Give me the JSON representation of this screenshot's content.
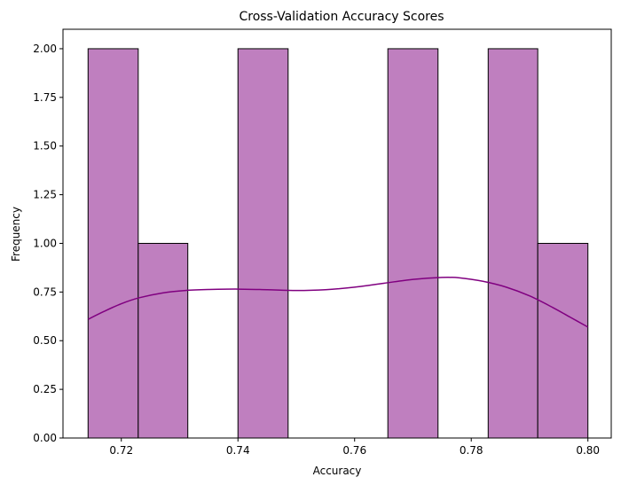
{
  "chart_data": {
    "type": "bar",
    "subtype": "histogram-with-kde",
    "title": "Cross-Validation Accuracy Scores",
    "xlabel": "Accuracy",
    "ylabel": "Frequency",
    "xlim": [
      0.71,
      0.804
    ],
    "ylim": [
      0,
      2.1
    ],
    "x_ticks": [
      0.72,
      0.74,
      0.76,
      0.78,
      0.8
    ],
    "x_tick_labels": [
      "0.72",
      "0.74",
      "0.76",
      "0.78",
      "0.80"
    ],
    "y_ticks": [
      0,
      0.25,
      0.5,
      0.75,
      1.0,
      1.25,
      1.5,
      1.75,
      2.0
    ],
    "y_tick_labels": [
      "0.00",
      "0.25",
      "0.50",
      "0.75",
      "1.00",
      "1.25",
      "1.50",
      "1.75",
      "2.00"
    ],
    "bins": [
      {
        "start": 0.7143,
        "end": 0.7229,
        "count": 2
      },
      {
        "start": 0.7229,
        "end": 0.7314,
        "count": 1
      },
      {
        "start": 0.7314,
        "end": 0.74,
        "count": 0
      },
      {
        "start": 0.74,
        "end": 0.7486,
        "count": 2
      },
      {
        "start": 0.7486,
        "end": 0.7571,
        "count": 0
      },
      {
        "start": 0.7571,
        "end": 0.7657,
        "count": 0
      },
      {
        "start": 0.7657,
        "end": 0.7743,
        "count": 2
      },
      {
        "start": 0.7743,
        "end": 0.7829,
        "count": 0
      },
      {
        "start": 0.7829,
        "end": 0.7914,
        "count": 2
      },
      {
        "start": 0.7914,
        "end": 0.8,
        "count": 1
      }
    ],
    "kde": {
      "x": [
        0.7143,
        0.717,
        0.72,
        0.723,
        0.727,
        0.731,
        0.735,
        0.74,
        0.745,
        0.75,
        0.755,
        0.76,
        0.765,
        0.77,
        0.775,
        0.778,
        0.782,
        0.786,
        0.79,
        0.794,
        0.797,
        0.8
      ],
      "y": [
        0.61,
        0.65,
        0.69,
        0.72,
        0.745,
        0.758,
        0.763,
        0.765,
        0.762,
        0.758,
        0.762,
        0.775,
        0.795,
        0.815,
        0.825,
        0.823,
        0.805,
        0.775,
        0.73,
        0.67,
        0.62,
        0.57
      ]
    },
    "colors": {
      "bar_fill": "#bf7fbf",
      "bar_edge": "#000000",
      "kde_line": "#800080"
    },
    "grid": false,
    "legend": "none"
  }
}
